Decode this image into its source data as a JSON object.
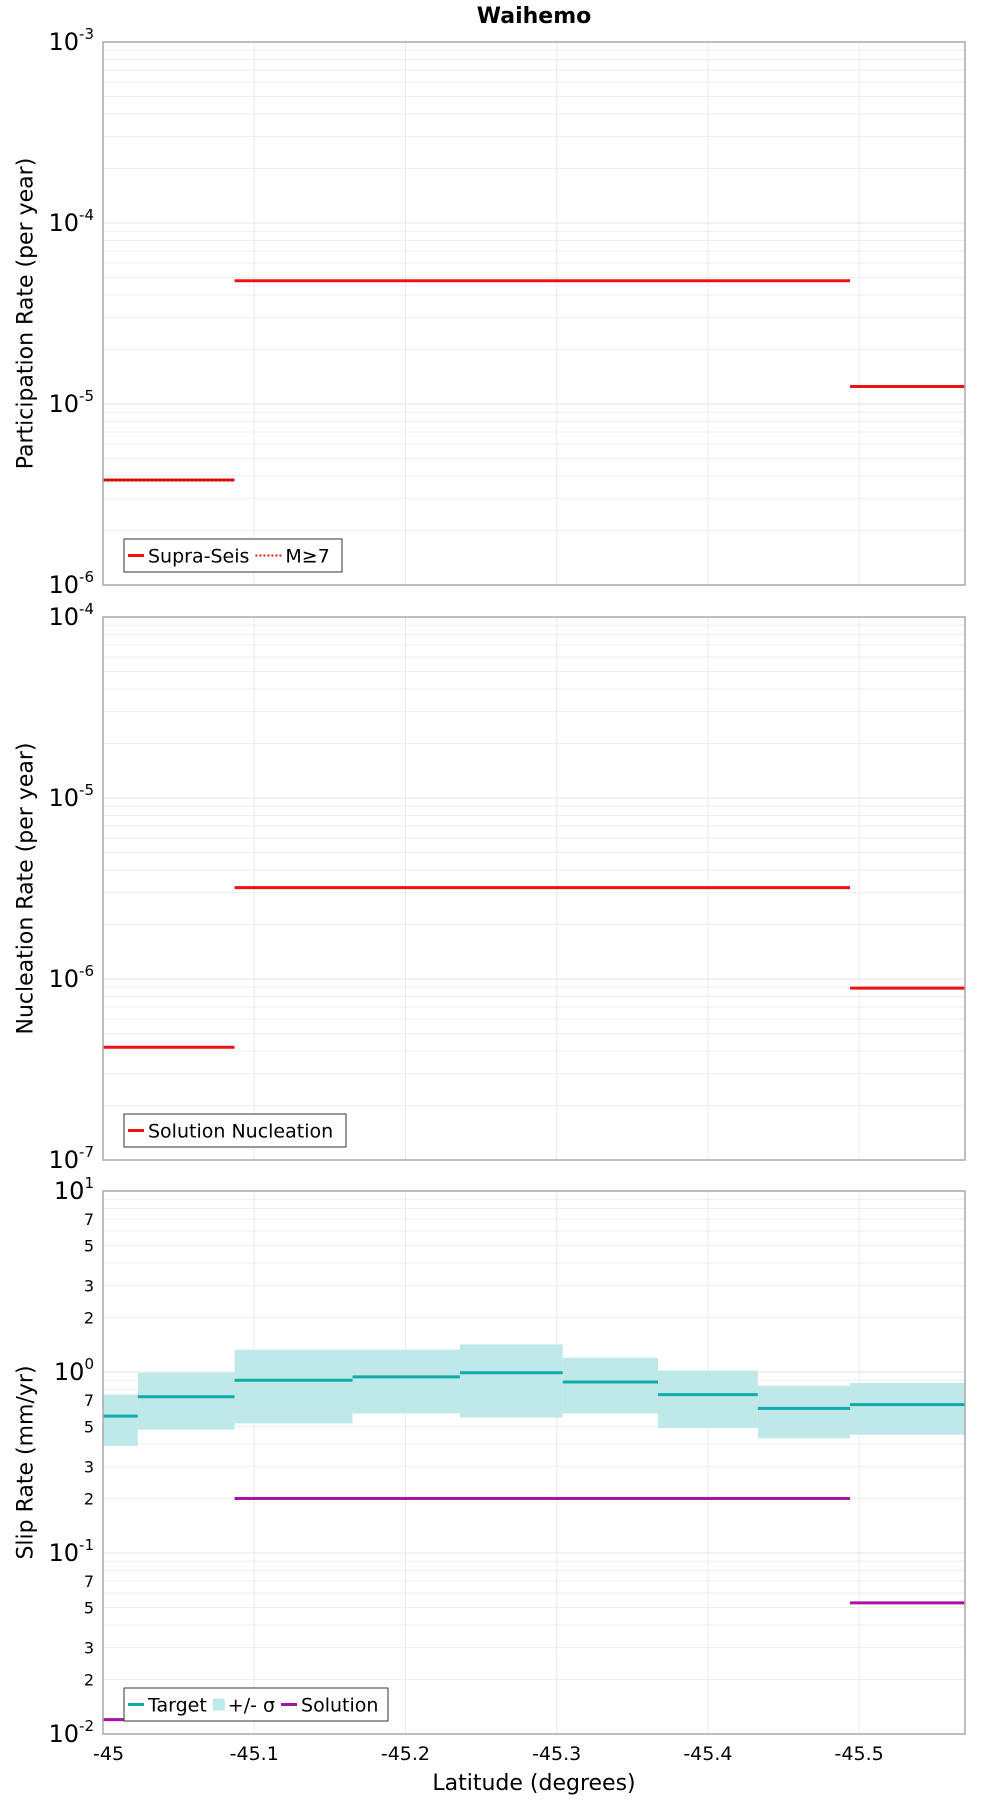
{
  "chart_data": [
    {
      "type": "line",
      "title": "Waihemo",
      "ylabel": "Participation Rate (per year)",
      "xlabel": "",
      "y_scale": "log",
      "ylim": [
        1e-06,
        0.001
      ],
      "xlim": [
        -45.0,
        -45.57
      ],
      "x_ticks": [
        "-45",
        "-45.1",
        "-45.2",
        "-45.3",
        "-45.4",
        "-45.5"
      ],
      "y_ticks": [
        {
          "base": "10",
          "exp": "-6"
        },
        {
          "base": "10",
          "exp": "-5"
        },
        {
          "base": "10",
          "exp": "-4"
        },
        {
          "base": "10",
          "exp": "-3"
        }
      ],
      "grid": true,
      "legend_position": "bottom-left",
      "series": [
        {
          "name": "Supra-Seis",
          "style": "solid",
          "color": "#ee1111",
          "segments": [
            {
              "x0": -45.0,
              "x1": -45.087,
              "y": 3.8e-06
            },
            {
              "x0": -45.087,
              "x1": -45.494,
              "y": 4.8e-05
            },
            {
              "x0": -45.494,
              "x1": -45.57,
              "y": 1.25e-05
            }
          ]
        },
        {
          "name": "M≥7",
          "style": "dotted",
          "color": "#ee1111",
          "segments": [
            {
              "x0": -45.0,
              "x1": -45.087,
              "y": 3.8e-06
            }
          ]
        }
      ]
    },
    {
      "type": "line",
      "title": "",
      "ylabel": "Nucleation Rate (per year)",
      "xlabel": "",
      "y_scale": "log",
      "ylim": [
        1e-07,
        0.0001
      ],
      "xlim": [
        -45.0,
        -45.57
      ],
      "x_ticks": [
        "-45",
        "-45.1",
        "-45.2",
        "-45.3",
        "-45.4",
        "-45.5"
      ],
      "y_ticks": [
        {
          "base": "10",
          "exp": "-7"
        },
        {
          "base": "10",
          "exp": "-6"
        },
        {
          "base": "10",
          "exp": "-5"
        },
        {
          "base": "10",
          "exp": "-4"
        }
      ],
      "grid": true,
      "legend_position": "bottom-left",
      "series": [
        {
          "name": "Solution Nucleation",
          "style": "solid",
          "color": "#ee1111",
          "segments": [
            {
              "x0": -45.0,
              "x1": -45.087,
              "y": 4.2e-07
            },
            {
              "x0": -45.087,
              "x1": -45.494,
              "y": 3.2e-06
            },
            {
              "x0": -45.494,
              "x1": -45.57,
              "y": 8.9e-07
            }
          ]
        }
      ]
    },
    {
      "type": "line",
      "title": "",
      "ylabel": "Slip Rate (mm/yr)",
      "xlabel": "Latitude (degrees)",
      "y_scale": "log",
      "ylim": [
        0.01,
        10
      ],
      "xlim": [
        -45.0,
        -45.57
      ],
      "x_ticks": [
        "-45",
        "-45.1",
        "-45.2",
        "-45.3",
        "-45.4",
        "-45.5"
      ],
      "y_ticks": [
        {
          "base": "10",
          "exp": "-2"
        },
        {
          "base": "10",
          "exp": "-1"
        },
        {
          "base": "10",
          "exp": "0"
        },
        {
          "base": "10",
          "exp": "1"
        }
      ],
      "y_minor_tick_labels": [
        "2",
        "3",
        "5",
        "7"
      ],
      "grid": true,
      "legend_position": "bottom-left",
      "series": [
        {
          "name": "Target",
          "style": "solid",
          "color": "#11aaaa",
          "segments": [
            {
              "x0": -45.0,
              "x1": -45.023,
              "y": 0.57
            },
            {
              "x0": -45.023,
              "x1": -45.087,
              "y": 0.73
            },
            {
              "x0": -45.087,
              "x1": -45.165,
              "y": 0.9
            },
            {
              "x0": -45.165,
              "x1": -45.236,
              "y": 0.94
            },
            {
              "x0": -45.236,
              "x1": -45.304,
              "y": 0.99
            },
            {
              "x0": -45.304,
              "x1": -45.367,
              "y": 0.88
            },
            {
              "x0": -45.367,
              "x1": -45.433,
              "y": 0.75
            },
            {
              "x0": -45.433,
              "x1": -45.494,
              "y": 0.63
            },
            {
              "x0": -45.494,
              "x1": -45.57,
              "y": 0.66
            }
          ]
        },
        {
          "name": "+/- σ",
          "style": "band",
          "color": "#bfe9e9",
          "segments": [
            {
              "x0": -45.0,
              "x1": -45.023,
              "lo": 0.39,
              "hi": 0.75
            },
            {
              "x0": -45.023,
              "x1": -45.087,
              "lo": 0.48,
              "hi": 0.99
            },
            {
              "x0": -45.087,
              "x1": -45.165,
              "lo": 0.52,
              "hi": 1.33
            },
            {
              "x0": -45.165,
              "x1": -45.236,
              "lo": 0.59,
              "hi": 1.33
            },
            {
              "x0": -45.236,
              "x1": -45.304,
              "lo": 0.56,
              "hi": 1.42
            },
            {
              "x0": -45.304,
              "x1": -45.367,
              "lo": 0.59,
              "hi": 1.2
            },
            {
              "x0": -45.367,
              "x1": -45.433,
              "lo": 0.49,
              "hi": 1.02
            },
            {
              "x0": -45.433,
              "x1": -45.494,
              "lo": 0.43,
              "hi": 0.84
            },
            {
              "x0": -45.494,
              "x1": -45.57,
              "lo": 0.45,
              "hi": 0.87
            }
          ]
        },
        {
          "name": "Solution",
          "style": "solid",
          "color": "#aa11aa",
          "segments": [
            {
              "x0": -45.0,
              "x1": -45.087,
              "y": 0.012
            },
            {
              "x0": -45.087,
              "x1": -45.494,
              "y": 0.2
            },
            {
              "x0": -45.494,
              "x1": -45.57,
              "y": 0.053
            }
          ]
        }
      ]
    }
  ]
}
